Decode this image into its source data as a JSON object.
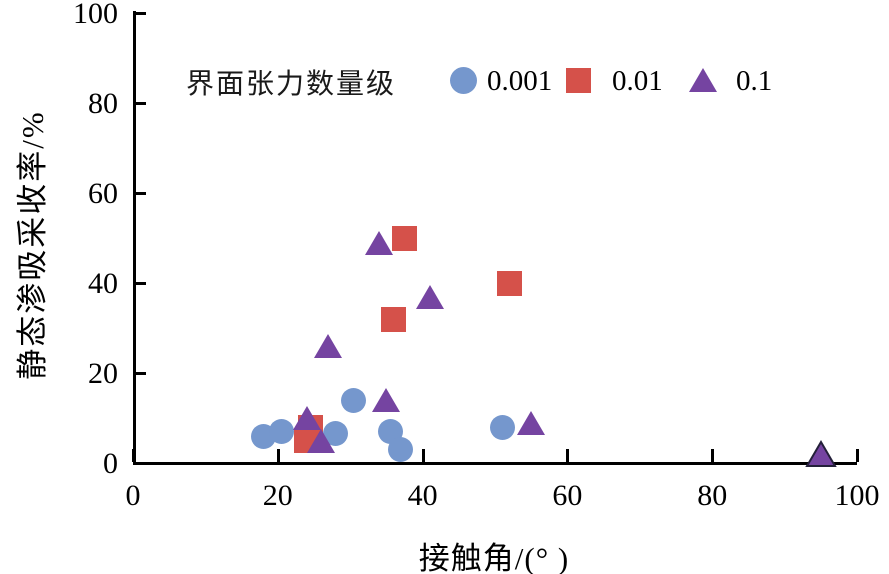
{
  "chart_data": {
    "type": "scatter",
    "title": "",
    "xlabel": "接触角/(°  )",
    "ylabel": "静态渗吸采收率/%",
    "xlim": [
      0,
      100
    ],
    "ylim": [
      0,
      100
    ],
    "xticks": [
      0,
      20,
      40,
      60,
      80,
      100
    ],
    "yticks": [
      0,
      20,
      40,
      60,
      80,
      100
    ],
    "grid": false,
    "legend": {
      "title": "界面张力数量级",
      "position": "top-inside",
      "entries": [
        "0.001",
        "0.01",
        "0.1"
      ]
    },
    "series": [
      {
        "name": "0.001",
        "marker": "circle",
        "color": "#7597cd",
        "points": [
          [
            18,
            6
          ],
          [
            20.5,
            7
          ],
          [
            28,
            6.5
          ],
          [
            30.5,
            14
          ],
          [
            35.5,
            7
          ],
          [
            37,
            3
          ],
          [
            51,
            8
          ]
        ]
      },
      {
        "name": "0.01",
        "marker": "square",
        "color": "#d5514a",
        "points": [
          [
            24,
            5
          ],
          [
            24.5,
            8
          ],
          [
            36,
            32
          ],
          [
            37.5,
            50
          ],
          [
            52,
            40
          ]
        ]
      },
      {
        "name": "0.1",
        "marker": "triangle",
        "color": "#7544a1",
        "points": [
          [
            24,
            10
          ],
          [
            26,
            5
          ],
          [
            27,
            26
          ],
          [
            34,
            49
          ],
          [
            35,
            14
          ],
          [
            41,
            37
          ],
          [
            55,
            9
          ],
          [
            95,
            2
          ]
        ]
      }
    ],
    "colors": {
      "axis": "#000000",
      "background": "#ffffff",
      "last_triangle_edge": "#24203a"
    }
  }
}
